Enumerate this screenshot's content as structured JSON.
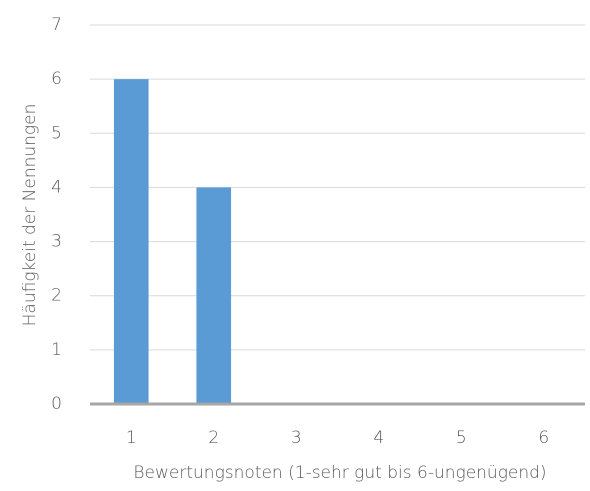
{
  "chart_data": {
    "type": "bar",
    "categories": [
      "1",
      "2",
      "3",
      "4",
      "5",
      "6"
    ],
    "values": [
      6,
      4,
      0,
      0,
      0,
      0
    ],
    "color": "#5b9bd5",
    "ylim": [
      0,
      7
    ],
    "yticks": [
      0,
      1,
      2,
      3,
      4,
      5,
      6,
      7
    ],
    "grid": true,
    "xlabel": "Bewertungsnoten (1-sehr gut bis 6-ungenügend)",
    "ylabel": "Häufigkeit der Nennungen"
  }
}
